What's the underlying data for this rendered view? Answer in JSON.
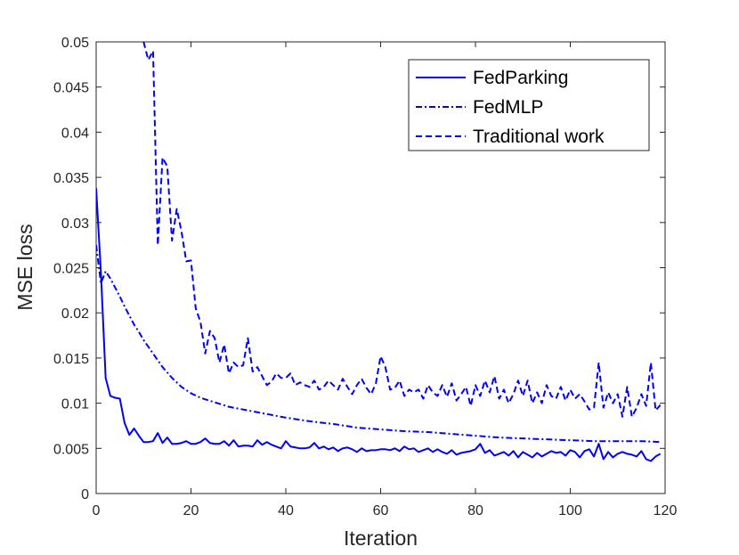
{
  "chart_data": {
    "type": "line",
    "xlabel": "Iteration",
    "ylabel": "MSE loss",
    "xlim": [
      0,
      120
    ],
    "ylim": [
      0,
      0.05
    ],
    "xticks": [
      "0",
      "20",
      "40",
      "60",
      "80",
      "100",
      "120"
    ],
    "yticks": [
      "0",
      "0.005",
      "0.01",
      "0.015",
      "0.02",
      "0.025",
      "0.03",
      "0.035",
      "0.04",
      "0.045",
      "0.05"
    ],
    "grid": false,
    "legend_position": "top-right",
    "colors": {
      "series": "#0000ff",
      "axis": "#262626"
    },
    "series": [
      {
        "name": "FedParking",
        "style": "solid",
        "x": [
          0,
          1,
          2,
          3,
          4,
          5,
          6,
          7,
          8,
          9,
          10,
          11,
          12,
          13,
          14,
          15,
          16,
          17,
          18,
          19,
          20,
          21,
          22,
          23,
          24,
          25,
          26,
          27,
          28,
          29,
          30,
          31,
          32,
          33,
          34,
          35,
          36,
          37,
          38,
          39,
          40,
          41,
          42,
          43,
          44,
          45,
          46,
          47,
          48,
          49,
          50,
          51,
          52,
          53,
          54,
          55,
          56,
          57,
          58,
          59,
          60,
          61,
          62,
          63,
          64,
          65,
          66,
          67,
          68,
          69,
          70,
          71,
          72,
          73,
          74,
          75,
          76,
          77,
          78,
          79,
          80,
          81,
          82,
          83,
          84,
          85,
          86,
          87,
          88,
          89,
          90,
          91,
          92,
          93,
          94,
          95,
          96,
          97,
          98,
          99,
          100,
          101,
          102,
          103,
          104,
          105,
          106,
          107,
          108,
          109,
          110,
          111,
          112,
          113,
          114,
          115,
          116,
          117,
          118,
          119
        ],
        "values": [
          0.0338,
          0.0245,
          0.0128,
          0.0108,
          0.0106,
          0.0105,
          0.0078,
          0.0065,
          0.0072,
          0.0064,
          0.0057,
          0.0057,
          0.0058,
          0.0067,
          0.0056,
          0.0062,
          0.0055,
          0.0055,
          0.0056,
          0.0058,
          0.0055,
          0.0055,
          0.0057,
          0.0061,
          0.0056,
          0.0055,
          0.0055,
          0.0058,
          0.0053,
          0.0059,
          0.0052,
          0.0053,
          0.0053,
          0.0052,
          0.0059,
          0.0054,
          0.0057,
          0.0054,
          0.0052,
          0.005,
          0.0058,
          0.0052,
          0.0051,
          0.005,
          0.005,
          0.0051,
          0.0056,
          0.005,
          0.0052,
          0.0049,
          0.0051,
          0.0047,
          0.005,
          0.0051,
          0.0049,
          0.0046,
          0.005,
          0.0047,
          0.0048,
          0.0048,
          0.0049,
          0.0049,
          0.0048,
          0.005,
          0.0047,
          0.0052,
          0.0049,
          0.005,
          0.0046,
          0.0048,
          0.005,
          0.0046,
          0.0049,
          0.0046,
          0.0044,
          0.0048,
          0.0043,
          0.0045,
          0.0046,
          0.0047,
          0.0049,
          0.0055,
          0.0045,
          0.0048,
          0.0042,
          0.0044,
          0.0046,
          0.0042,
          0.0047,
          0.004,
          0.0046,
          0.0043,
          0.004,
          0.0045,
          0.0041,
          0.0044,
          0.0047,
          0.0045,
          0.0046,
          0.0042,
          0.0048,
          0.0046,
          0.004,
          0.0047,
          0.0049,
          0.0041,
          0.0055,
          0.0038,
          0.0046,
          0.004,
          0.0044,
          0.0046,
          0.0044,
          0.0043,
          0.0041,
          0.0047,
          0.0038,
          0.0036,
          0.0041,
          0.0044
        ]
      },
      {
        "name": "FedMLP",
        "style": "dash-dot",
        "x": [
          0,
          1,
          2,
          3,
          4,
          5,
          6,
          7,
          8,
          9,
          10,
          12,
          14,
          16,
          18,
          20,
          22,
          25,
          28,
          31,
          34,
          37,
          40,
          45,
          50,
          55,
          60,
          65,
          70,
          75,
          80,
          85,
          90,
          95,
          100,
          105,
          110,
          115,
          119
        ],
        "values": [
          0.0275,
          0.0233,
          0.0246,
          0.0238,
          0.0228,
          0.0218,
          0.0207,
          0.0197,
          0.0187,
          0.0179,
          0.017,
          0.0155,
          0.014,
          0.0128,
          0.0118,
          0.0111,
          0.0106,
          0.0101,
          0.0096,
          0.0093,
          0.009,
          0.0087,
          0.0084,
          0.008,
          0.0077,
          0.0073,
          0.0071,
          0.0069,
          0.0068,
          0.0066,
          0.0064,
          0.0062,
          0.0061,
          0.006,
          0.0059,
          0.0058,
          0.0058,
          0.0058,
          0.0057
        ]
      },
      {
        "name": "Traditional work",
        "style": "dashed",
        "x": [
          10,
          11,
          12,
          13,
          14,
          15,
          16,
          17,
          18,
          19,
          20,
          21,
          22,
          23,
          24,
          25,
          26,
          27,
          28,
          29,
          30,
          31,
          32,
          33,
          34,
          35,
          36,
          37,
          38,
          39,
          40,
          41,
          42,
          43,
          44,
          45,
          46,
          47,
          48,
          49,
          50,
          51,
          52,
          53,
          54,
          55,
          56,
          57,
          58,
          59,
          60,
          61,
          62,
          63,
          64,
          65,
          66,
          67,
          68,
          69,
          70,
          71,
          72,
          73,
          74,
          75,
          76,
          77,
          78,
          79,
          80,
          81,
          82,
          83,
          84,
          85,
          86,
          87,
          88,
          89,
          90,
          91,
          92,
          93,
          94,
          95,
          96,
          97,
          98,
          99,
          100,
          101,
          102,
          103,
          104,
          105,
          106,
          107,
          108,
          109,
          110,
          111,
          112,
          113,
          114,
          115,
          116,
          117,
          118,
          119
        ],
        "values": [
          0.05,
          0.048,
          0.049,
          0.0275,
          0.0372,
          0.0362,
          0.028,
          0.0315,
          0.029,
          0.0257,
          0.0258,
          0.0205,
          0.019,
          0.0155,
          0.018,
          0.0172,
          0.0145,
          0.0165,
          0.0133,
          0.0145,
          0.014,
          0.0142,
          0.0172,
          0.0135,
          0.014,
          0.013,
          0.012,
          0.0124,
          0.0133,
          0.0128,
          0.0128,
          0.0133,
          0.012,
          0.0123,
          0.012,
          0.0118,
          0.0125,
          0.0115,
          0.0118,
          0.0125,
          0.012,
          0.0115,
          0.0127,
          0.0118,
          0.011,
          0.012,
          0.0127,
          0.0117,
          0.011,
          0.0122,
          0.0152,
          0.014,
          0.0115,
          0.0117,
          0.0125,
          0.0108,
          0.0115,
          0.0112,
          0.0115,
          0.0105,
          0.012,
          0.0112,
          0.0108,
          0.012,
          0.0107,
          0.0122,
          0.0103,
          0.011,
          0.0118,
          0.0097,
          0.012,
          0.0108,
          0.0125,
          0.0112,
          0.013,
          0.0105,
          0.0115,
          0.01,
          0.011,
          0.0125,
          0.0108,
          0.0125,
          0.01,
          0.0112,
          0.01,
          0.012,
          0.0108,
          0.0105,
          0.0118,
          0.0103,
          0.0115,
          0.0105,
          0.011,
          0.0102,
          0.0093,
          0.0095,
          0.0145,
          0.0095,
          0.0112,
          0.01,
          0.011,
          0.0085,
          0.0118,
          0.0085,
          0.0095,
          0.011,
          0.0097,
          0.0145,
          0.0092,
          0.0098
        ]
      }
    ]
  }
}
